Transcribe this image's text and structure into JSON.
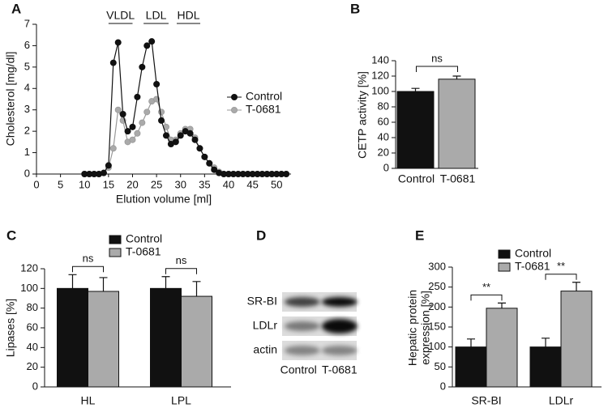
{
  "chart_data": [
    {
      "type": "line",
      "panel": "A",
      "x_label": "Elution volume [ml]",
      "y_label": "Cholesterol [mg/dl]",
      "x": [
        10,
        11,
        12,
        13,
        14,
        15,
        16,
        17,
        18,
        19,
        20,
        21,
        22,
        23,
        24,
        25,
        26,
        27,
        28,
        29,
        30,
        31,
        32,
        33,
        34,
        35,
        36,
        37,
        38,
        39,
        40,
        41,
        42,
        43,
        44,
        45,
        46,
        47,
        48,
        49,
        50,
        51,
        52
      ],
      "series": [
        {
          "name": "Control",
          "color": "#111111",
          "values": [
            0,
            0,
            0,
            0,
            0.05,
            0.4,
            5.2,
            6.15,
            2.8,
            2.0,
            2.2,
            3.6,
            5.0,
            6.0,
            6.2,
            4.2,
            2.5,
            1.8,
            1.4,
            1.5,
            1.8,
            2.0,
            1.9,
            1.6,
            1.2,
            0.8,
            0.5,
            0.2,
            0.05,
            0,
            0,
            0,
            0,
            0,
            0,
            0,
            0,
            0,
            0,
            0,
            0,
            0,
            0
          ]
        },
        {
          "name": "T-0681",
          "color": "#aaaaaa",
          "values": [
            0,
            0,
            0,
            0,
            0.05,
            0.3,
            1.2,
            3.0,
            2.5,
            1.5,
            1.6,
            1.9,
            2.4,
            2.9,
            3.4,
            3.5,
            2.9,
            2.2,
            1.6,
            1.6,
            1.9,
            2.1,
            2.1,
            1.7,
            1.2,
            0.8,
            0.5,
            0.3,
            0.1,
            0,
            0,
            0,
            0,
            0,
            0,
            0,
            0,
            0,
            0,
            0,
            0,
            0,
            0
          ]
        }
      ],
      "xlim": [
        0,
        53
      ],
      "xticks": [
        0,
        5,
        10,
        15,
        20,
        25,
        30,
        35,
        40,
        45,
        50
      ],
      "ylim": [
        0,
        7
      ],
      "yticks": [
        0,
        1,
        2,
        3,
        4,
        5,
        6,
        7
      ],
      "regions": [
        {
          "label": "VLDL",
          "range": [
            15,
            20
          ]
        },
        {
          "label": "LDL",
          "range": [
            22.3,
            27.5
          ]
        },
        {
          "label": "HDL",
          "range": [
            29.2,
            34.1
          ]
        }
      ]
    },
    {
      "type": "bar",
      "panel": "B",
      "y_label": "CETP activity [%]",
      "categories": [
        "Control",
        "T-0681"
      ],
      "values": [
        100,
        116
      ],
      "errors": [
        4,
        4
      ],
      "colors": [
        "#111111",
        "#aaaaaa"
      ],
      "ylim": [
        0,
        140
      ],
      "yticks": [
        0,
        20,
        40,
        60,
        80,
        100,
        120,
        140
      ],
      "significance": "ns"
    },
    {
      "type": "bar",
      "panel": "C",
      "y_label": "Lipases [%]",
      "categories": [
        "HL",
        "LPL"
      ],
      "series": [
        {
          "name": "Control",
          "color": "#111111",
          "values": [
            100,
            100
          ],
          "errors": [
            14,
            12
          ]
        },
        {
          "name": "T-0681",
          "color": "#aaaaaa",
          "values": [
            97,
            92
          ],
          "errors": [
            14,
            15
          ]
        }
      ],
      "ylim": [
        0,
        120
      ],
      "yticks": [
        0,
        20,
        40,
        60,
        80,
        100,
        120
      ],
      "significance": [
        "ns",
        "ns"
      ]
    },
    {
      "type": "blot",
      "panel": "D",
      "rows": [
        "SR-BI",
        "LDLr",
        "actin"
      ],
      "columns": [
        "Control",
        "T-0681"
      ]
    },
    {
      "type": "bar",
      "panel": "E",
      "y_label": [
        "Hepatic protein",
        "expression [%]"
      ],
      "categories": [
        "SR-BI",
        "LDLr"
      ],
      "series": [
        {
          "name": "Control",
          "color": "#111111",
          "values": [
            100,
            100
          ],
          "errors": [
            20,
            22
          ]
        },
        {
          "name": "T-0681",
          "color": "#aaaaaa",
          "values": [
            197,
            240
          ],
          "errors": [
            13,
            22
          ]
        }
      ],
      "ylim": [
        0,
        300
      ],
      "yticks": [
        0,
        50,
        100,
        150,
        200,
        250,
        300
      ],
      "significance": [
        "**",
        "**"
      ]
    }
  ]
}
